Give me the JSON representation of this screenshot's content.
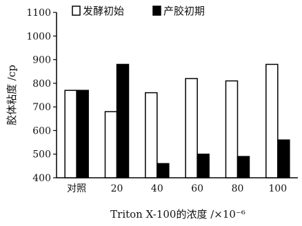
{
  "chart_data": {
    "type": "bar",
    "xlabel": "Triton X-100的浓度 /×10⁻⁶",
    "ylabel": "胶体粘度 /cp",
    "categories": [
      "对照",
      "20",
      "40",
      "60",
      "80",
      "100"
    ],
    "ylim": [
      400,
      1100
    ],
    "yticks": [
      400,
      500,
      600,
      700,
      800,
      900,
      1000,
      1100
    ],
    "legend_position": "top",
    "series": [
      {
        "name": "发酵初始",
        "fill": "#ffffff",
        "stroke": "#000000",
        "values": [
          770,
          680,
          760,
          820,
          810,
          880
        ]
      },
      {
        "name": "产胶初期",
        "fill": "#000000",
        "stroke": "#000000",
        "values": [
          770,
          880,
          460,
          500,
          490,
          560
        ]
      }
    ]
  }
}
